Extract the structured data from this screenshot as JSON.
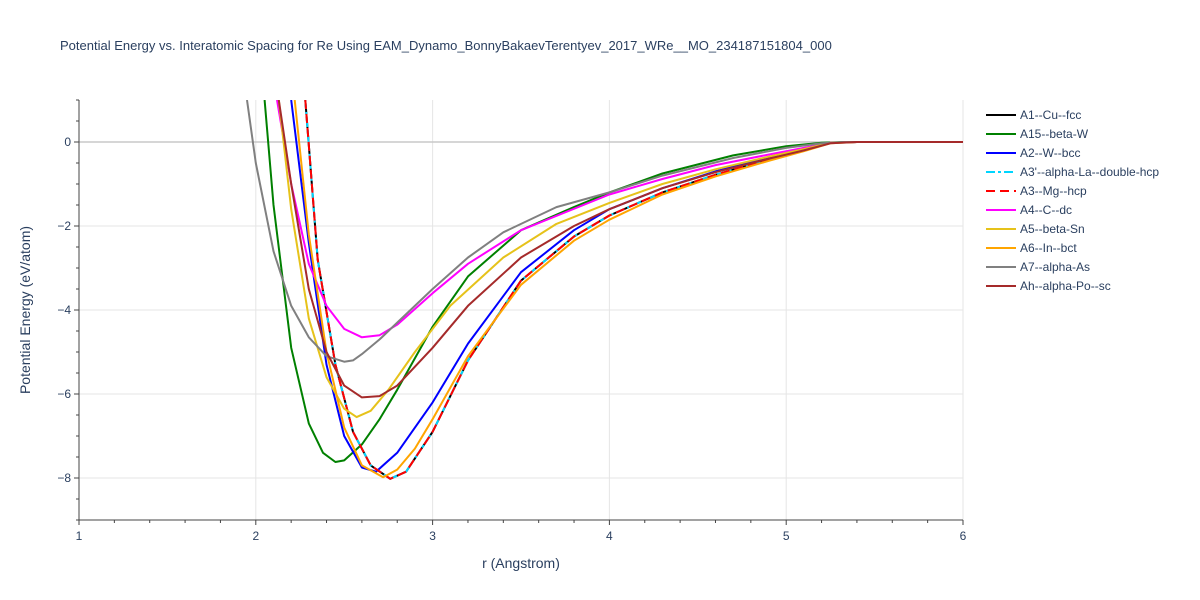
{
  "chart_data": {
    "type": "line",
    "title": "Potential Energy vs. Interatomic Spacing for Re Using EAM_Dynamo_BonnyBakaevTerentyev_2017_WRe__MO_234187151804_000",
    "xlabel": "r (Angstrom)",
    "ylabel": "Potential Energy (eV/atom)",
    "xlim": [
      1,
      6
    ],
    "ylim": [
      -9,
      1
    ],
    "xticks": [
      1,
      2,
      3,
      4,
      5,
      6
    ],
    "yticks": [
      -8,
      -6,
      -4,
      -2,
      0
    ],
    "grid": true,
    "legend_position": "right",
    "series": [
      {
        "name": "A1--Cu--fcc",
        "color": "#000000",
        "dash": "solid",
        "x": [
          2.28,
          2.35,
          2.45,
          2.55,
          2.65,
          2.76,
          2.85,
          3.0,
          3.2,
          3.5,
          3.8,
          4.0,
          4.3,
          4.6,
          4.9,
          5.1,
          5.25,
          5.4,
          6.0
        ],
        "y": [
          1.0,
          -2.8,
          -5.3,
          -6.9,
          -7.7,
          -8.02,
          -7.85,
          -6.9,
          -5.2,
          -3.3,
          -2.25,
          -1.75,
          -1.2,
          -0.78,
          -0.42,
          -0.2,
          -0.02,
          0,
          0
        ]
      },
      {
        "name": "A15--beta-W",
        "color": "#008000",
        "dash": "solid",
        "x": [
          2.05,
          2.1,
          2.2,
          2.3,
          2.38,
          2.45,
          2.5,
          2.6,
          2.7,
          2.8,
          3.0,
          3.2,
          3.5,
          3.8,
          4.0,
          4.3,
          4.7,
          5.0,
          5.2,
          5.35,
          6.0
        ],
        "y": [
          1.0,
          -1.5,
          -4.9,
          -6.7,
          -7.4,
          -7.62,
          -7.58,
          -7.2,
          -6.6,
          -5.9,
          -4.4,
          -3.2,
          -2.1,
          -1.55,
          -1.2,
          -0.75,
          -0.32,
          -0.1,
          -0.02,
          0,
          0
        ]
      },
      {
        "name": "A2--W--bcc",
        "color": "#0000ff",
        "dash": "solid",
        "x": [
          2.2,
          2.3,
          2.4,
          2.5,
          2.6,
          2.68,
          2.8,
          3.0,
          3.2,
          3.5,
          3.8,
          4.0,
          4.3,
          4.6,
          4.9,
          5.1,
          5.25,
          5.4,
          6.0
        ],
        "y": [
          1.0,
          -2.4,
          -5.3,
          -7.0,
          -7.75,
          -7.85,
          -7.4,
          -6.2,
          -4.8,
          -3.1,
          -2.1,
          -1.6,
          -1.1,
          -0.7,
          -0.38,
          -0.18,
          -0.02,
          0,
          0
        ]
      },
      {
        "name": "A3'--alpha-La--double-hcp",
        "color": "#00d5ff",
        "dash": "dashdot",
        "x": [
          2.28,
          2.35,
          2.45,
          2.55,
          2.65,
          2.76,
          2.85,
          3.0,
          3.2,
          3.5,
          3.8,
          4.0,
          4.3,
          4.6,
          4.9,
          5.1,
          5.25,
          5.4,
          6.0
        ],
        "y": [
          1.0,
          -2.8,
          -5.3,
          -6.9,
          -7.7,
          -8.02,
          -7.85,
          -6.9,
          -5.2,
          -3.3,
          -2.25,
          -1.75,
          -1.2,
          -0.78,
          -0.42,
          -0.2,
          -0.02,
          0,
          0
        ]
      },
      {
        "name": "A3--Mg--hcp",
        "color": "#ff0000",
        "dash": "dash",
        "x": [
          2.28,
          2.35,
          2.45,
          2.55,
          2.65,
          2.76,
          2.85,
          3.0,
          3.2,
          3.5,
          3.8,
          4.0,
          4.3,
          4.6,
          4.9,
          5.1,
          5.25,
          5.4,
          6.0
        ],
        "y": [
          1.0,
          -2.8,
          -5.3,
          -6.9,
          -7.7,
          -8.02,
          -7.85,
          -6.9,
          -5.2,
          -3.3,
          -2.25,
          -1.75,
          -1.2,
          -0.78,
          -0.42,
          -0.2,
          -0.02,
          0,
          0
        ]
      },
      {
        "name": "A4--C--dc",
        "color": "#ff00ff",
        "dash": "solid",
        "x": [
          2.12,
          2.2,
          2.3,
          2.4,
          2.5,
          2.6,
          2.7,
          2.8,
          3.0,
          3.2,
          3.5,
          4.0,
          4.3,
          4.6,
          4.9,
          5.1,
          5.25,
          5.4,
          6.0
        ],
        "y": [
          1.0,
          -1.0,
          -2.9,
          -3.9,
          -4.45,
          -4.65,
          -4.6,
          -4.35,
          -3.6,
          -2.9,
          -2.1,
          -1.25,
          -0.88,
          -0.55,
          -0.3,
          -0.14,
          -0.02,
          0,
          0
        ]
      },
      {
        "name": "A5--beta-Sn",
        "color": "#e6c21a",
        "dash": "solid",
        "x": [
          2.13,
          2.2,
          2.3,
          2.4,
          2.5,
          2.57,
          2.65,
          2.75,
          2.9,
          3.1,
          3.4,
          3.7,
          4.0,
          4.3,
          4.6,
          4.9,
          5.1,
          5.25,
          5.4,
          6.0
        ],
        "y": [
          1.0,
          -1.6,
          -4.2,
          -5.6,
          -6.35,
          -6.55,
          -6.4,
          -5.9,
          -5.0,
          -3.9,
          -2.75,
          -1.95,
          -1.45,
          -1.0,
          -0.65,
          -0.35,
          -0.17,
          -0.02,
          0,
          0
        ]
      },
      {
        "name": "A6--In--bct",
        "color": "#ffa500",
        "dash": "solid",
        "x": [
          2.22,
          2.3,
          2.4,
          2.5,
          2.6,
          2.72,
          2.8,
          2.9,
          3.0,
          3.2,
          3.5,
          3.8,
          4.0,
          4.3,
          4.6,
          4.9,
          5.1,
          5.25,
          5.4,
          6.0
        ],
        "y": [
          1.0,
          -2.2,
          -5.0,
          -6.8,
          -7.7,
          -7.98,
          -7.8,
          -7.3,
          -6.6,
          -5.1,
          -3.4,
          -2.35,
          -1.85,
          -1.25,
          -0.82,
          -0.45,
          -0.22,
          -0.03,
          0,
          0
        ]
      },
      {
        "name": "A7--alpha-As",
        "color": "#808080",
        "dash": "solid",
        "x": [
          1.95,
          2.0,
          2.1,
          2.2,
          2.3,
          2.4,
          2.5,
          2.55,
          2.6,
          2.7,
          2.8,
          3.0,
          3.2,
          3.4,
          3.7,
          4.0,
          4.3,
          4.7,
          5.0,
          5.2,
          5.35,
          6.0
        ],
        "y": [
          1.0,
          -0.5,
          -2.6,
          -3.9,
          -4.65,
          -5.1,
          -5.23,
          -5.2,
          -5.05,
          -4.7,
          -4.3,
          -3.5,
          -2.75,
          -2.15,
          -1.55,
          -1.2,
          -0.8,
          -0.38,
          -0.14,
          -0.03,
          0,
          0
        ]
      },
      {
        "name": "Ah--alpha-Po--sc",
        "color": "#a52a2a",
        "dash": "solid",
        "x": [
          2.13,
          2.2,
          2.3,
          2.4,
          2.5,
          2.6,
          2.7,
          2.8,
          3.0,
          3.2,
          3.5,
          3.8,
          4.0,
          4.3,
          4.6,
          4.9,
          5.1,
          5.25,
          5.4,
          6.0
        ],
        "y": [
          1.0,
          -1.0,
          -3.5,
          -5.0,
          -5.8,
          -6.08,
          -6.05,
          -5.8,
          -4.9,
          -3.9,
          -2.75,
          -2.0,
          -1.6,
          -1.1,
          -0.72,
          -0.4,
          -0.2,
          -0.03,
          0,
          0
        ]
      }
    ]
  }
}
